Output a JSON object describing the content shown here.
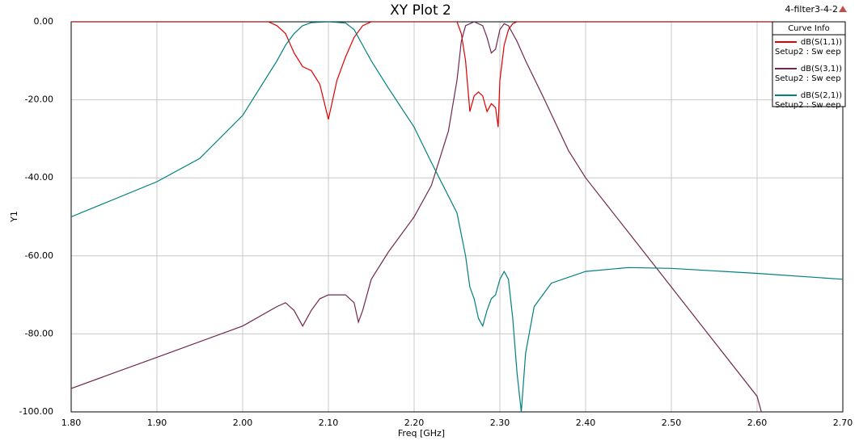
{
  "chart_data": {
    "type": "line",
    "title": "XY Plot 2",
    "project": "4-filter3-4-2",
    "x_label": "Freq [GHz]",
    "y_label": "Y1",
    "legend_title": "Curve Info",
    "grid": true,
    "legend": "upper right",
    "xlim": [
      1.8,
      2.7
    ],
    "ylim": [
      -100,
      0
    ],
    "xticks": [
      {
        "value": 1.8,
        "label": "1.80"
      },
      {
        "value": 1.9,
        "label": "1.90"
      },
      {
        "value": 2.0,
        "label": "2.00"
      },
      {
        "value": 2.1,
        "label": "2.10"
      },
      {
        "value": 2.2,
        "label": "2.20"
      },
      {
        "value": 2.3,
        "label": "2.30"
      },
      {
        "value": 2.4,
        "label": "2.40"
      },
      {
        "value": 2.5,
        "label": "2.50"
      },
      {
        "value": 2.6,
        "label": "2.60"
      },
      {
        "value": 2.7,
        "label": "2.70"
      }
    ],
    "yticks": [
      {
        "value": -100,
        "label": "-100.00"
      },
      {
        "value": -80,
        "label": "-80.00"
      },
      {
        "value": -60,
        "label": "-60.00"
      },
      {
        "value": -40,
        "label": "-40.00"
      },
      {
        "value": -20,
        "label": "-20.00"
      },
      {
        "value": 0,
        "label": "0.00"
      }
    ],
    "series": [
      {
        "name": "dB(S(1,1))",
        "note": "Setup2 : Sw eep",
        "color": "#e00000",
        "x": [
          1.8,
          2.03,
          2.04,
          2.05,
          2.06,
          2.07,
          2.08,
          2.09,
          2.1,
          2.11,
          2.12,
          2.13,
          2.14,
          2.15,
          2.25,
          2.255,
          2.26,
          2.265,
          2.27,
          2.275,
          2.28,
          2.285,
          2.29,
          2.295,
          2.298,
          2.3,
          2.305,
          2.31,
          2.315,
          2.32,
          2.7
        ],
        "values": [
          0,
          0,
          -1,
          -3,
          -8,
          -11.5,
          -12.5,
          -16,
          -25,
          -15,
          -9,
          -4,
          -1,
          0,
          0,
          -3,
          -10,
          -23,
          -19,
          -18,
          -19,
          -23,
          -21,
          -22,
          -27,
          -15,
          -6,
          -2,
          -0.5,
          0,
          0
        ]
      },
      {
        "name": "dB(S(3,1))",
        "note": "Setup2 : Sw eep",
        "color": "#702850",
        "x": [
          1.8,
          1.9,
          2.0,
          2.04,
          2.05,
          2.06,
          2.07,
          2.08,
          2.09,
          2.1,
          2.12,
          2.13,
          2.135,
          2.14,
          2.15,
          2.17,
          2.2,
          2.22,
          2.24,
          2.25,
          2.255,
          2.26,
          2.27,
          2.28,
          2.285,
          2.29,
          2.295,
          2.3,
          2.305,
          2.31,
          2.32,
          2.33,
          2.35,
          2.38,
          2.4,
          2.45,
          2.5,
          2.55,
          2.6,
          2.605
        ],
        "values": [
          -94,
          -86,
          -78,
          -73,
          -72,
          -74,
          -78,
          -74,
          -71,
          -70,
          -70,
          -72,
          -77,
          -74,
          -66,
          -59,
          -50,
          -42,
          -28,
          -15,
          -5,
          -1,
          0,
          -1,
          -4,
          -8,
          -7,
          -2,
          -0.5,
          -1,
          -5,
          -10,
          -19,
          -33,
          -40,
          -54,
          -68,
          -82,
          -96,
          -100
        ]
      },
      {
        "name": "dB(S(2,1))",
        "note": "Setup2 : Sw eep",
        "color": "#007f7f",
        "x": [
          1.8,
          1.9,
          1.95,
          2.0,
          2.02,
          2.04,
          2.05,
          2.06,
          2.07,
          2.08,
          2.1,
          2.12,
          2.13,
          2.14,
          2.15,
          2.17,
          2.2,
          2.22,
          2.25,
          2.26,
          2.265,
          2.27,
          2.275,
          2.28,
          2.285,
          2.29,
          2.295,
          2.3,
          2.305,
          2.31,
          2.315,
          2.32,
          2.325,
          2.33,
          2.34,
          2.36,
          2.4,
          2.45,
          2.5,
          2.6,
          2.7
        ],
        "values": [
          -50,
          -41,
          -35,
          -24,
          -17,
          -10,
          -6,
          -3,
          -1,
          -0.2,
          0,
          -0.3,
          -2,
          -6,
          -10,
          -17,
          -27,
          -36,
          -49,
          -60,
          -68,
          -71,
          -76,
          -78,
          -74,
          -71,
          -70,
          -66,
          -64,
          -66,
          -76,
          -90,
          -100,
          -85,
          -73,
          -67,
          -64,
          -63,
          -63.2,
          -64.5,
          -66
        ]
      }
    ]
  }
}
